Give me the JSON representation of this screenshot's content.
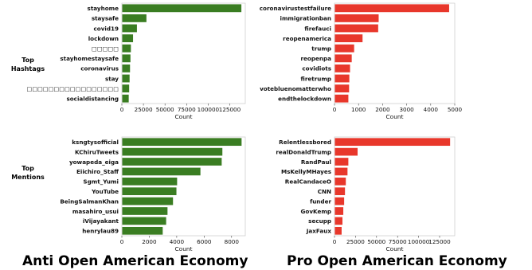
{
  "row_labels": {
    "top_hashtags": [
      "Top",
      "Hashtags"
    ],
    "top_mentions": [
      "Top",
      "Mentions"
    ]
  },
  "column_titles": {
    "anti": "Anti Open American Economy",
    "pro": "Pro Open American Economy"
  },
  "colors": {
    "anti": "#3a7d22",
    "pro": "#e8372b"
  },
  "chart_data": [
    {
      "id": "anti-hashtags",
      "type": "bar",
      "orientation": "horizontal",
      "color": "#3a7d22",
      "xlabel": "Count",
      "xlim": [
        0,
        143000
      ],
      "xticks": [
        0,
        25000,
        50000,
        75000,
        100000,
        125000
      ],
      "categories": [
        "stayhome",
        "staysafe",
        "covid19",
        "lockdown",
        "□□□□□",
        "stayhomestaysafe",
        "coronavirus",
        "stay",
        "□□□□□□□□□□□□□□□□□",
        "socialdistancing"
      ],
      "values": [
        138000,
        28000,
        17000,
        12500,
        10000,
        9500,
        9000,
        8500,
        8000,
        7500
      ]
    },
    {
      "id": "pro-hashtags",
      "type": "bar",
      "orientation": "horizontal",
      "color": "#e8372b",
      "xlabel": "Count",
      "xlim": [
        0,
        5000
      ],
      "xticks": [
        0,
        1000,
        2000,
        3000,
        4000,
        5000
      ],
      "categories": [
        "coronavirustestfailure",
        "immigrationban",
        "firefauci",
        "reopenamerica",
        "trump",
        "reopenpa",
        "covidiots",
        "firetrump",
        "votebluenomatterwho",
        "endthelockdown"
      ],
      "values": [
        4750,
        1820,
        1800,
        1150,
        800,
        700,
        630,
        600,
        590,
        560
      ]
    },
    {
      "id": "anti-mentions",
      "type": "bar",
      "orientation": "horizontal",
      "color": "#3a7d22",
      "xlabel": "Count",
      "xlim": [
        0,
        9000
      ],
      "xticks": [
        0,
        2000,
        4000,
        6000,
        8000
      ],
      "categories": [
        "ksngtysofficial",
        "KChiruTweets",
        "yowapeda_eiga",
        "Eiichiro_Staff",
        "Sgmt_Yumi",
        "YouTube",
        "BeingSalmanKhan",
        "masahiro_usui",
        "iVijayakant",
        "henrylau89"
      ],
      "values": [
        8700,
        7300,
        7250,
        5700,
        4000,
        3950,
        3700,
        3300,
        3200,
        2950
      ]
    },
    {
      "id": "pro-mentions",
      "type": "bar",
      "orientation": "horizontal",
      "color": "#e8372b",
      "xlabel": "Count",
      "xlim": [
        0,
        143000
      ],
      "xticks": [
        0,
        25000,
        50000,
        75000,
        100000,
        125000
      ],
      "categories": [
        "Relentlessbored",
        "realDonaldTrump",
        "RandPaul",
        "MsKellyMHayes",
        "RealCandaceO",
        "CNN",
        "funder",
        "GovKemp",
        "secupp",
        "JaxFaux"
      ],
      "values": [
        137000,
        27000,
        16000,
        15000,
        13000,
        12000,
        11000,
        10000,
        9000,
        8000
      ]
    }
  ]
}
